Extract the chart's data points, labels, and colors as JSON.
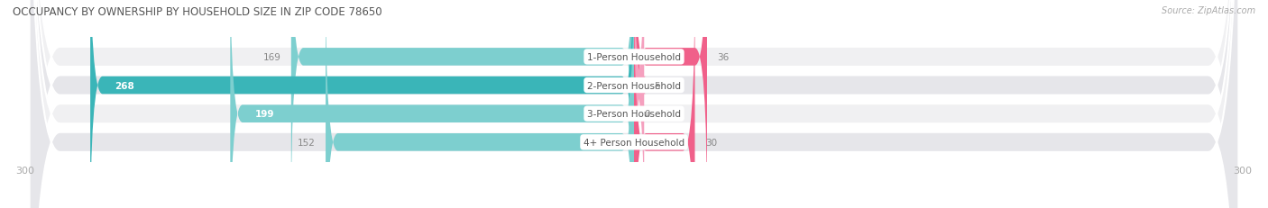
{
  "title": "OCCUPANCY BY OWNERSHIP BY HOUSEHOLD SIZE IN ZIP CODE 78650",
  "source": "Source: ZipAtlas.com",
  "categories": [
    "1-Person Household",
    "2-Person Household",
    "3-Person Household",
    "4+ Person Household"
  ],
  "owner_values": [
    169,
    268,
    199,
    152
  ],
  "renter_values": [
    36,
    5,
    0,
    30
  ],
  "owner_color_dark": "#3ab5b8",
  "owner_color_light": "#7dcfcf",
  "renter_color_dark": "#f0608a",
  "renter_color_light": "#f5a0be",
  "row_bg_color_odd": "#f0f0f2",
  "row_bg_color_even": "#e6e6ea",
  "label_text_color": "#555555",
  "value_label_color": "#888888",
  "title_color": "#555555",
  "source_color": "#aaaaaa",
  "x_min": -300,
  "x_max": 300
}
